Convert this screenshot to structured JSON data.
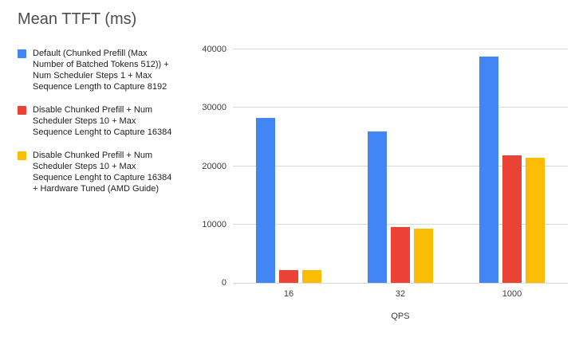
{
  "chart_data": {
    "type": "bar",
    "title": "Mean TTFT (ms)",
    "xlabel": "QPS",
    "ylabel": "",
    "categories": [
      "16",
      "32",
      "1000"
    ],
    "series": [
      {
        "name": "Default (Chunked Prefill (Max Number of Batched Tokens 512)) + Num Scheduler Steps 1 + Max Sequence Length to Capture 8192",
        "color": "#4285F4",
        "values": [
          28300,
          26000,
          38800
        ]
      },
      {
        "name": "Disable Chunked Prefill + Num Scheduler Steps 10 + Max Sequence Lenght to Capture 16384",
        "color": "#EA4335",
        "values": [
          2250,
          9500,
          21800
        ]
      },
      {
        "name": "Disable Chunked Prefill + Num Scheduler Steps 10 + Max Sequence Lenght to Capture 16384 + Hardware Tuned (AMD Guide)",
        "color": "#FBBC04",
        "values": [
          2200,
          9300,
          21500
        ]
      }
    ],
    "ylim": [
      0,
      40000
    ],
    "yticks": [
      0,
      10000,
      20000,
      30000,
      40000
    ],
    "grid": true,
    "legend_position": "left",
    "background": "#ffffff"
  }
}
